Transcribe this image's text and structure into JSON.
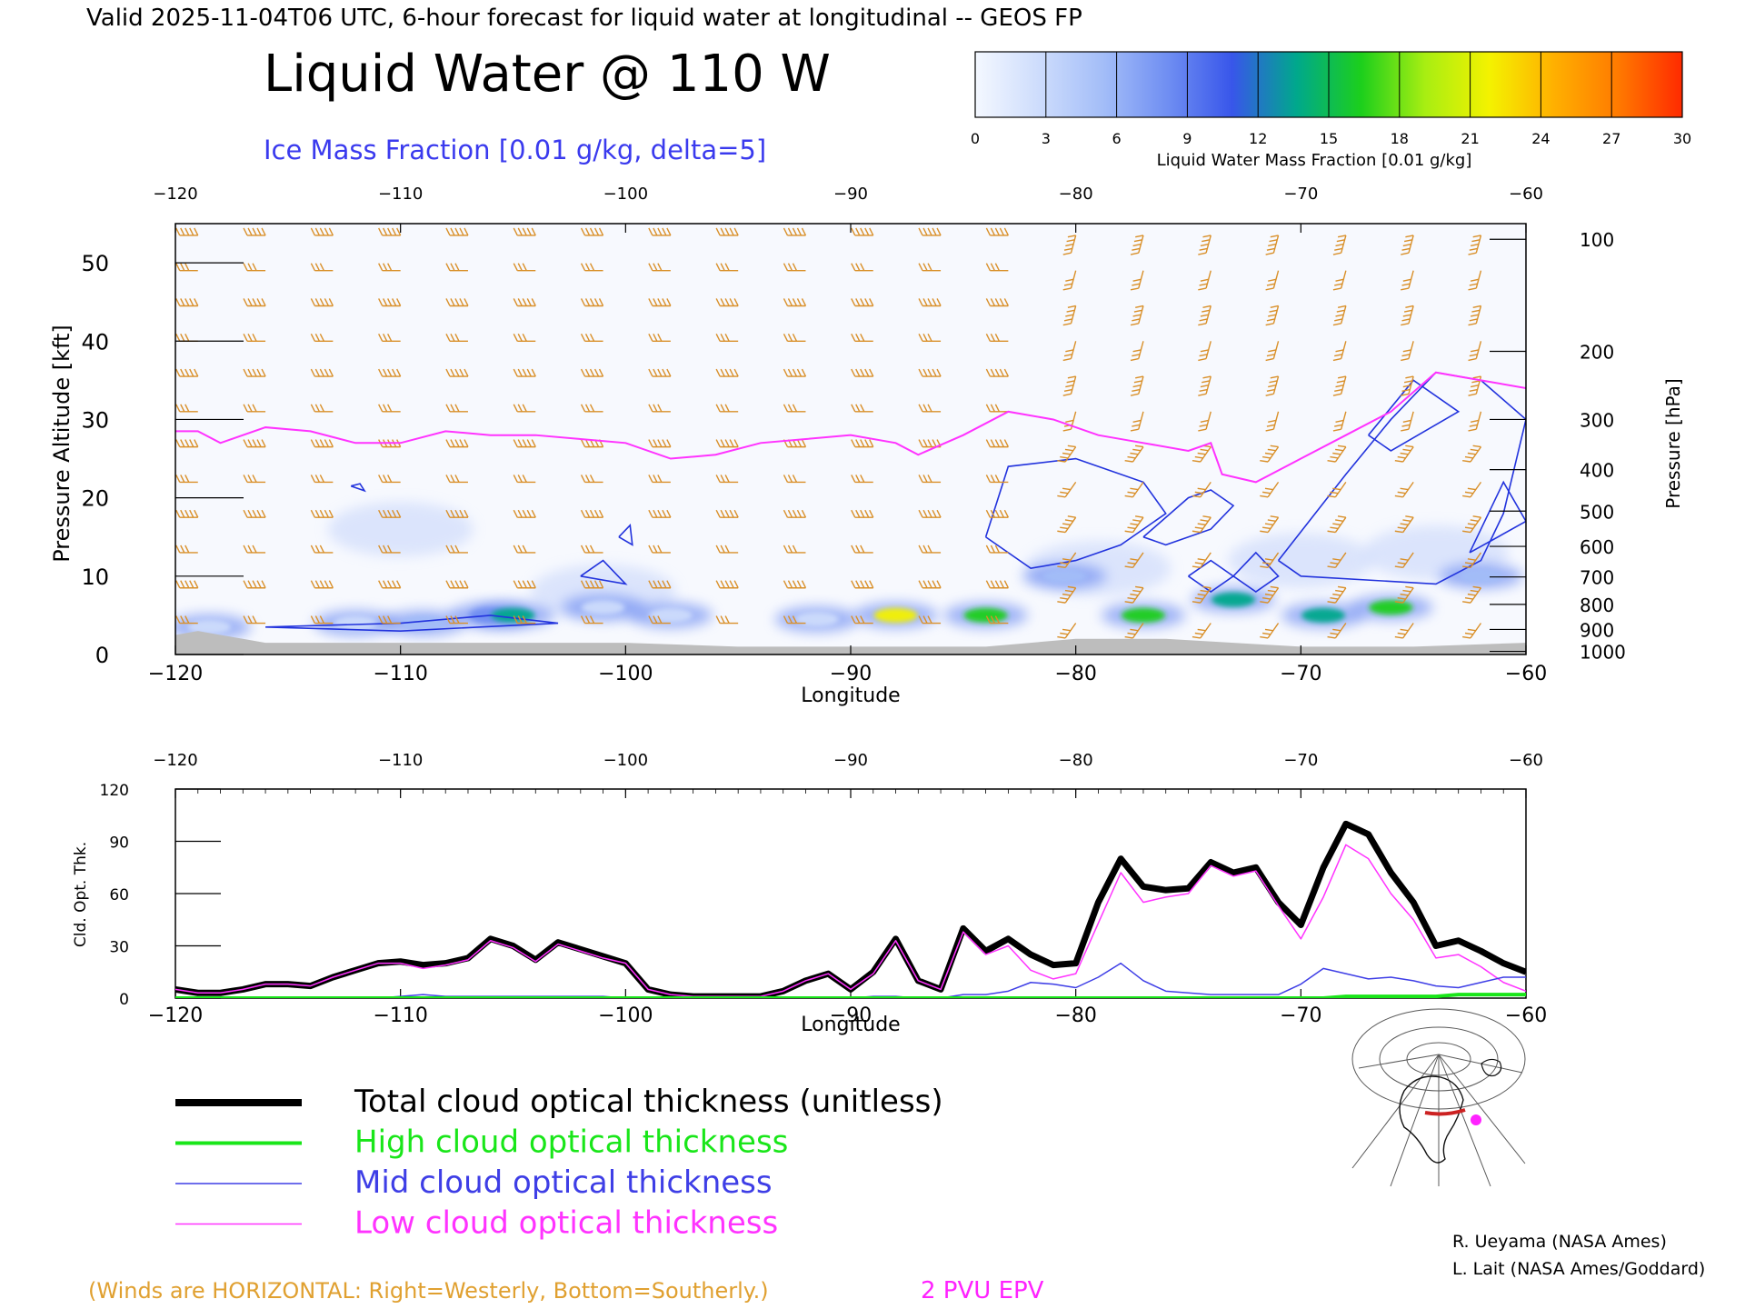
{
  "header": {
    "valid_line": "Valid 2025-11-04T06 UTC, 6-hour forecast for liquid water at longitudinal -- GEOS FP",
    "title": "Liquid Water @ 110 W",
    "subtitle": "Ice Mass Fraction [0.01 g/kg, delta=5]"
  },
  "colorbar": {
    "label": "Liquid Water Mass Fraction [0.01 g/kg]",
    "ticks": [
      "0",
      "3",
      "6",
      "9",
      "12",
      "15",
      "18",
      "21",
      "24",
      "27",
      "30"
    ],
    "colors": [
      "#f4f8ff",
      "#cddcfc",
      "#a3bdf8",
      "#6f8ef2",
      "#3856ea",
      "#00a88c",
      "#1ccf1c",
      "#a8ee12",
      "#f4f200",
      "#ffb000",
      "#ff7a00",
      "#ff2a00"
    ]
  },
  "chart_data": [
    {
      "type": "heatmap",
      "title": "Liquid Water @ 110 W",
      "subtitle": "Ice Mass Fraction [0.01 g/kg, delta=5]",
      "xlabel": "Longitude",
      "ylabel": "Pressure Altitude [kft]",
      "ylabel_right": "Pressure [hPa]",
      "xlim": [
        -120,
        -60
      ],
      "ylim": [
        0,
        55
      ],
      "x_ticks": [
        "−120",
        "−110",
        "−100",
        "−90",
        "−80",
        "−70",
        "−60"
      ],
      "y_ticks": [
        "0",
        "10",
        "20",
        "30",
        "40",
        "50"
      ],
      "pressure_ticks": [
        "100",
        "200",
        "300",
        "400",
        "500",
        "600",
        "700",
        "800",
        "900",
        "1000"
      ],
      "liquid_water_blobs": [
        {
          "lon": -118.5,
          "alt": 3.5,
          "level": 3
        },
        {
          "lon": -112,
          "alt": 4,
          "level": 4
        },
        {
          "lon": -109,
          "alt": 4,
          "level": 6
        },
        {
          "lon": -106,
          "alt": 5,
          "level": 9
        },
        {
          "lon": -105,
          "alt": 5,
          "level": 14
        },
        {
          "lon": -101,
          "alt": 6,
          "level": 5
        },
        {
          "lon": -98,
          "alt": 5,
          "level": 3
        },
        {
          "lon": -91.5,
          "alt": 4.5,
          "level": 5
        },
        {
          "lon": -88,
          "alt": 5,
          "level": 22
        },
        {
          "lon": -84,
          "alt": 5,
          "level": 18
        },
        {
          "lon": -80.5,
          "alt": 10,
          "level": 8
        },
        {
          "lon": -77,
          "alt": 5,
          "level": 18
        },
        {
          "lon": -73,
          "alt": 7,
          "level": 16
        },
        {
          "lon": -69,
          "alt": 5,
          "level": 16
        },
        {
          "lon": -66,
          "alt": 6,
          "level": 17
        },
        {
          "lon": -62,
          "alt": 10,
          "level": 7
        }
      ],
      "epv_2pvu_kft": {
        "lon": [
          -120,
          -119,
          -118,
          -116,
          -114,
          -112,
          -110,
          -108,
          -106,
          -104,
          -102,
          -100,
          -98,
          -96,
          -94,
          -92,
          -90,
          -88,
          -87,
          -85,
          -83,
          -81,
          -79,
          -77,
          -75,
          -74,
          -73.5,
          -72,
          -70,
          -68,
          -66,
          -64,
          -62,
          -60
        ],
        "alt": [
          28.5,
          28.5,
          27,
          29,
          28.5,
          27,
          27,
          28.5,
          28,
          28,
          27.5,
          27,
          25,
          25.5,
          27,
          27.5,
          28,
          27,
          25.5,
          28,
          31,
          30,
          28,
          27,
          26,
          27,
          23,
          22,
          25,
          28,
          31,
          36,
          35,
          34
        ]
      },
      "ice_contour_regions": [
        "-112,21",
        "-100,16",
        "-102,10",
        "-79,15",
        "-75,17",
        "-71,19",
        "-67,27",
        "-61.5,18"
      ]
    },
    {
      "type": "line",
      "xlabel": "Longitude",
      "ylabel": "Cld. Opt. Thk.",
      "xlim": [
        -120,
        -60
      ],
      "ylim": [
        0,
        120
      ],
      "x_ticks": [
        "−120",
        "−110",
        "−100",
        "−90",
        "−80",
        "−70",
        "−60"
      ],
      "y_ticks": [
        "0",
        "30",
        "60",
        "90",
        "120"
      ],
      "x": [
        -120,
        -119,
        -118,
        -117,
        -116,
        -115,
        -114,
        -113,
        -112,
        -111,
        -110,
        -109,
        -108,
        -107,
        -106,
        -105,
        -104,
        -103,
        -102,
        -101,
        -100,
        -99,
        -98,
        -97,
        -96,
        -95,
        -94,
        -93,
        -92,
        -91,
        -90,
        -89,
        -88,
        -87,
        -86,
        -85,
        -84,
        -83,
        -82,
        -81,
        -80,
        -79,
        -78,
        -77,
        -76,
        -75,
        -74,
        -73,
        -72,
        -71,
        -70,
        -69,
        -68,
        -67,
        -66,
        -65,
        -64,
        -63,
        -62,
        -61,
        -60
      ],
      "series": [
        {
          "name": "Total cloud optical thickness (unitless)",
          "values": [
            5,
            3,
            3,
            5,
            8,
            8,
            7,
            12,
            16,
            20,
            21,
            19,
            20,
            23,
            34,
            30,
            22,
            32,
            28,
            24,
            20,
            5,
            2,
            1,
            1,
            1,
            1,
            4,
            10,
            14,
            5,
            15,
            34,
            10,
            5,
            40,
            27,
            34,
            25,
            19,
            20,
            55,
            80,
            64,
            62,
            63,
            78,
            72,
            75,
            55,
            42,
            75,
            100,
            94,
            72,
            55,
            30,
            33,
            27,
            20,
            15
          ]
        },
        {
          "name": "High cloud optical thickness",
          "values": [
            0,
            0,
            0,
            0,
            0,
            0,
            0,
            0,
            0,
            0,
            0,
            0,
            0,
            0,
            0,
            0,
            0,
            0,
            0,
            0,
            0,
            0,
            0,
            0,
            0,
            0,
            0,
            0,
            0,
            0,
            0,
            0,
            0,
            0,
            0,
            0,
            0,
            0,
            0,
            0,
            0,
            0,
            0,
            0,
            0,
            0,
            0,
            0,
            0,
            0,
            0,
            0,
            1,
            1,
            1,
            1,
            1,
            2,
            2,
            2,
            2
          ]
        },
        {
          "name": "Mid cloud optical thickness",
          "values": [
            0,
            0,
            0,
            0,
            0,
            0,
            0,
            0,
            0,
            0,
            1,
            2,
            1,
            1,
            1,
            1,
            1,
            1,
            1,
            1,
            0,
            0,
            0,
            0,
            0,
            0,
            0,
            0,
            0,
            0,
            0,
            1,
            1,
            0,
            0,
            2,
            2,
            4,
            9,
            8,
            6,
            12,
            20,
            10,
            4,
            3,
            2,
            2,
            2,
            2,
            8,
            17,
            14,
            11,
            12,
            10,
            7,
            6,
            9,
            12,
            12
          ]
        },
        {
          "name": "Low cloud optical thickness",
          "values": [
            5,
            3,
            3,
            5,
            8,
            8,
            7,
            12,
            16,
            20,
            20,
            17,
            19,
            22,
            33,
            29,
            21,
            31,
            27,
            23,
            20,
            5,
            2,
            1,
            1,
            1,
            1,
            4,
            10,
            14,
            5,
            14,
            33,
            10,
            5,
            38,
            25,
            30,
            16,
            11,
            14,
            43,
            72,
            55,
            58,
            60,
            76,
            70,
            73,
            53,
            34,
            58,
            88,
            80,
            60,
            45,
            23,
            25,
            18,
            9,
            4
          ]
        }
      ]
    }
  ],
  "legend": {
    "items": [
      {
        "label": "Total cloud optical thickness (unitless)",
        "color": "#000000"
      },
      {
        "label": "High cloud optical thickness",
        "color": "#19e619"
      },
      {
        "label": "Mid cloud optical thickness",
        "color": "#3e3ee6"
      },
      {
        "label": "Low cloud optical thickness",
        "color": "#ff33ff"
      }
    ]
  },
  "footer": {
    "winds_note": "(Winds are HORIZONTAL: Right=Westerly, Bottom=Southerly.)",
    "epv_label": "2 PVU EPV",
    "credit1": "R. Ueyama (NASA Ames)",
    "credit2": "L. Lait (NASA Ames/Goddard)"
  },
  "colors": {
    "wind_barb": "#d9902a",
    "epv": "#ff33ff",
    "ice_contour": "#2233dd",
    "terrain": "#bdbdbd",
    "subtitle_blue": "#3a3aee",
    "winds_note": "#e0a030"
  }
}
